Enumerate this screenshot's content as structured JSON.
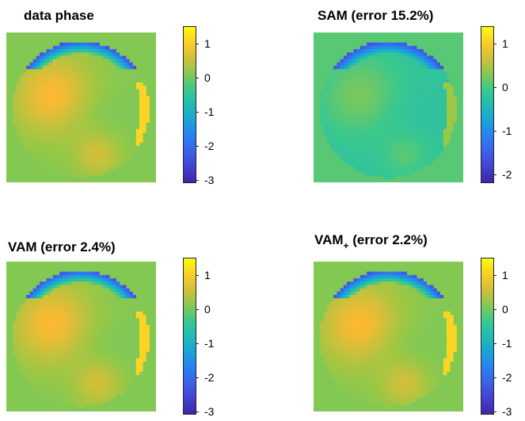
{
  "chart_data": [
    {
      "type": "heatmap",
      "title": "data phase",
      "colorbar": {
        "ticks": [
          "1",
          "0",
          "-1",
          "-2",
          "-3"
        ],
        "range": [
          -3.1,
          1.5
        ]
      },
      "colormap": "parula",
      "background_value": 0.1
    },
    {
      "type": "heatmap",
      "title": "SAM (error 15.2%)",
      "colorbar": {
        "ticks": [
          "1",
          "0",
          "-1",
          "-2"
        ],
        "range": [
          -2.2,
          1.4
        ]
      },
      "colormap": "parula",
      "background_value": 0.1
    },
    {
      "type": "heatmap",
      "title": "VAM (error 2.4%)",
      "colorbar": {
        "ticks": [
          "1",
          "0",
          "-1",
          "-2",
          "-3"
        ],
        "range": [
          -3.1,
          1.5
        ]
      },
      "colormap": "parula",
      "background_value": 0.1
    },
    {
      "type": "heatmap",
      "title_main": "VAM",
      "title_sub": "+",
      "title_rest": " (error 2.2%)",
      "colorbar": {
        "ticks": [
          "1",
          "0",
          "-1",
          "-2",
          "-3"
        ],
        "range": [
          -3.1,
          1.5
        ]
      },
      "colormap": "parula",
      "background_value": 0.1
    }
  ]
}
